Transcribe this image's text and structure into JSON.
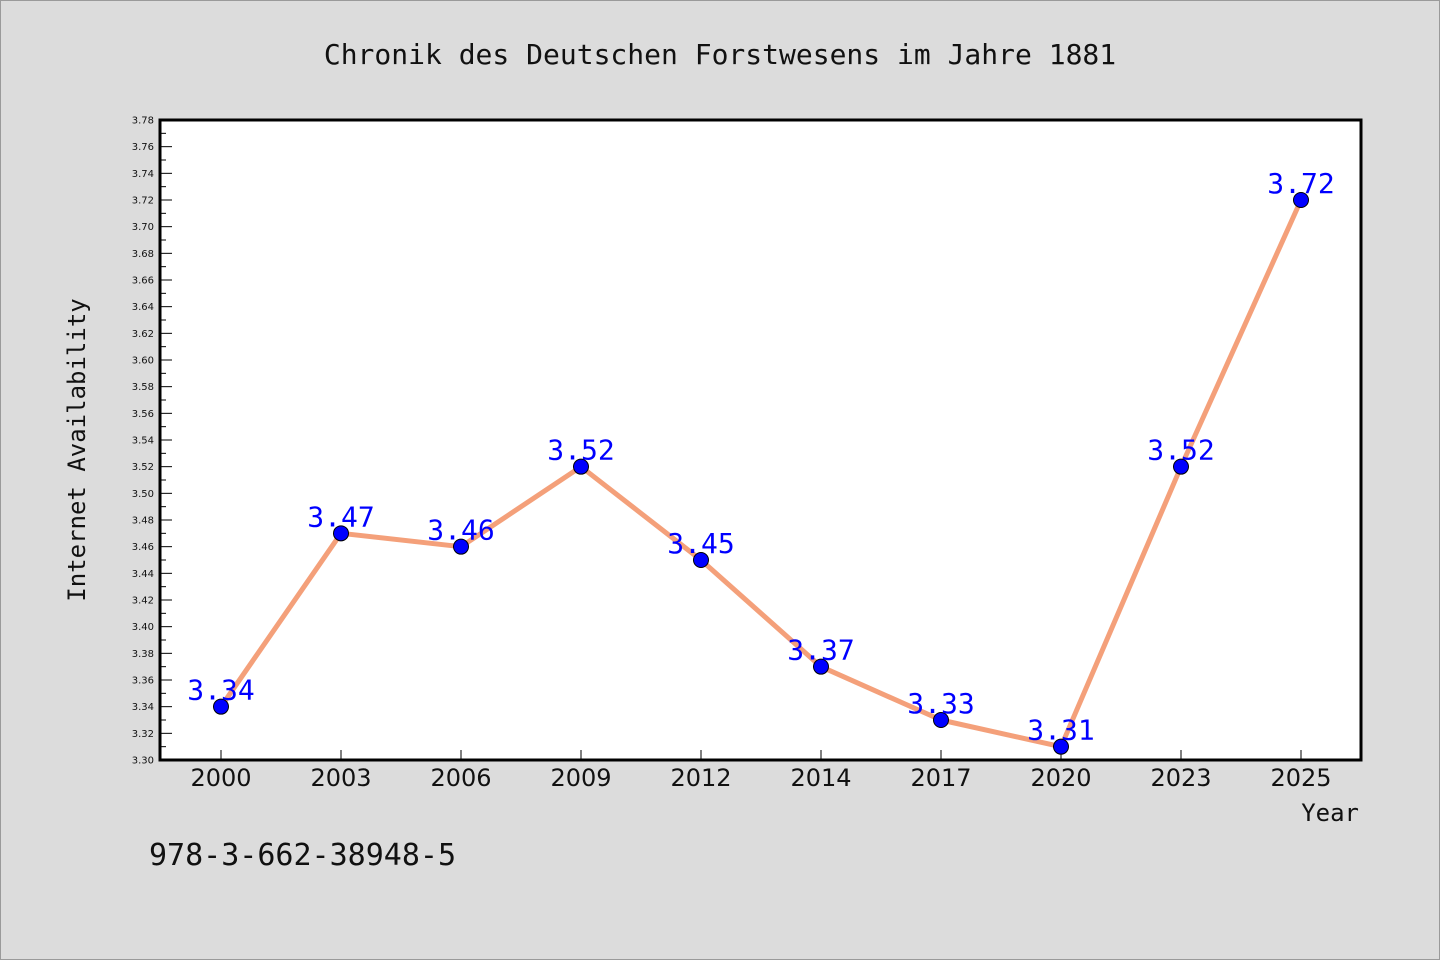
{
  "chart_data": {
    "type": "line",
    "title": "Chronik des Deutschen Forstwesens im Jahre 1881",
    "xlabel": "Year",
    "ylabel": "Internet Availability",
    "categories": [
      "2000",
      "2003",
      "2006",
      "2009",
      "2012",
      "2014",
      "2017",
      "2020",
      "2023",
      "2025"
    ],
    "series": [
      {
        "values": [
          3.34,
          3.47,
          3.46,
          3.52,
          3.45,
          3.37,
          3.33,
          3.31,
          3.52,
          3.72
        ],
        "labels": [
          "3.34",
          "3.47",
          "3.46",
          "3.52",
          "3.45",
          "3.37",
          "3.33",
          "3.31",
          "3.52",
          "3.72"
        ],
        "line_color": "#f4a07a",
        "marker_color": "#0000ff",
        "label_color": "#0000ff"
      }
    ],
    "ylim": [
      3.3,
      3.78
    ],
    "yticks": [
      "3.30",
      "3.32",
      "3.34",
      "3.36",
      "3.38",
      "3.40",
      "3.42",
      "3.44",
      "3.46",
      "3.48",
      "3.50",
      "3.52",
      "3.54",
      "3.56",
      "3.58",
      "3.60",
      "3.62",
      "3.64",
      "3.66",
      "3.68",
      "3.70",
      "3.72",
      "3.74",
      "3.76",
      "3.78"
    ],
    "grid": false,
    "legend": "none",
    "annotation": "978-3-662-38948-5"
  }
}
